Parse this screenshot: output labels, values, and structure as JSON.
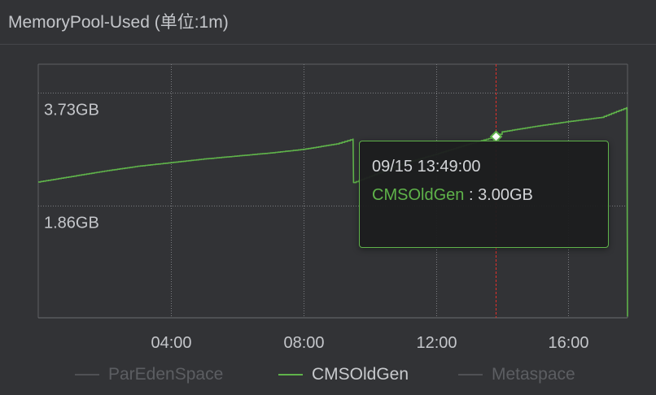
{
  "panel": {
    "title": "MemoryPool-Used (单位:1m)"
  },
  "chart_data": {
    "type": "line",
    "title": "MemoryPool-Used (单位:1m)",
    "xlabel": "",
    "ylabel": "",
    "x_ticks": [
      "04:00",
      "08:00",
      "12:00",
      "16:00"
    ],
    "y_ticks": [
      "1.86GB",
      "3.73GB"
    ],
    "y_unit": "GB",
    "ylim": [
      0,
      4.2
    ],
    "grid": true,
    "legend_position": "bottom",
    "series": [
      {
        "name": "ParEdenSpace",
        "visible": false,
        "values": []
      },
      {
        "name": "CMSOldGen",
        "visible": true,
        "color": "#5fb34a",
        "x": [
          "00:00",
          "01:00",
          "02:00",
          "03:00",
          "04:00",
          "05:00",
          "06:00",
          "07:00",
          "08:00",
          "09:00",
          "09:30",
          "09:31",
          "10:00",
          "11:00",
          "12:00",
          "13:00",
          "13:49",
          "14:00",
          "15:00",
          "16:00",
          "17:00",
          "17:45",
          "17:46",
          "17:47"
        ],
        "values": [
          2.25,
          2.34,
          2.43,
          2.51,
          2.57,
          2.63,
          2.68,
          2.73,
          2.79,
          2.88,
          2.96,
          2.24,
          2.34,
          2.55,
          2.71,
          2.88,
          3.0,
          3.08,
          3.17,
          3.25,
          3.32,
          3.48,
          3.48,
          0.02
        ]
      },
      {
        "name": "Metaspace",
        "visible": false,
        "values": []
      }
    ],
    "hover": {
      "time": "09/15 13:49:00",
      "series": "CMSOldGen",
      "value": "3.00GB"
    }
  },
  "tooltip": {
    "time": "09/15 13:49:00",
    "series": "CMSOldGen",
    "separator": ":",
    "value": "3.00GB"
  },
  "legend": [
    {
      "label": "ParEdenSpace",
      "active": false
    },
    {
      "label": "CMSOldGen",
      "active": true
    },
    {
      "label": "Metaspace",
      "active": false
    }
  ]
}
